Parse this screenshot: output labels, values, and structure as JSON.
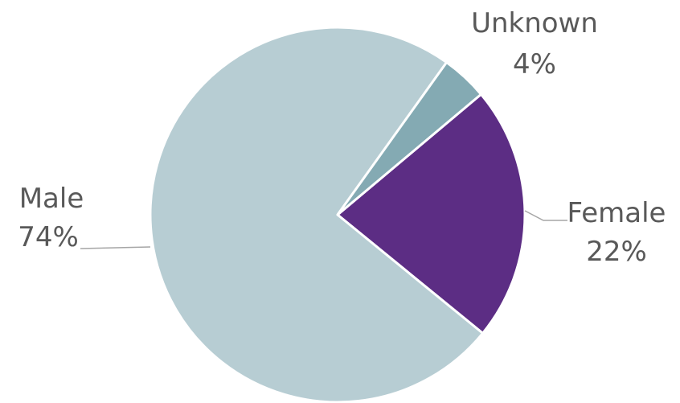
{
  "chart_data": {
    "type": "pie",
    "slices": [
      {
        "name": "Male",
        "value": 74,
        "value_label": "74%",
        "color": "#b7cdd3"
      },
      {
        "name": "Unknown",
        "value": 4,
        "value_label": "4%",
        "color": "#84aab3"
      },
      {
        "name": "Female",
        "value": 22,
        "value_label": "22%",
        "color": "#5c2d84"
      }
    ]
  }
}
